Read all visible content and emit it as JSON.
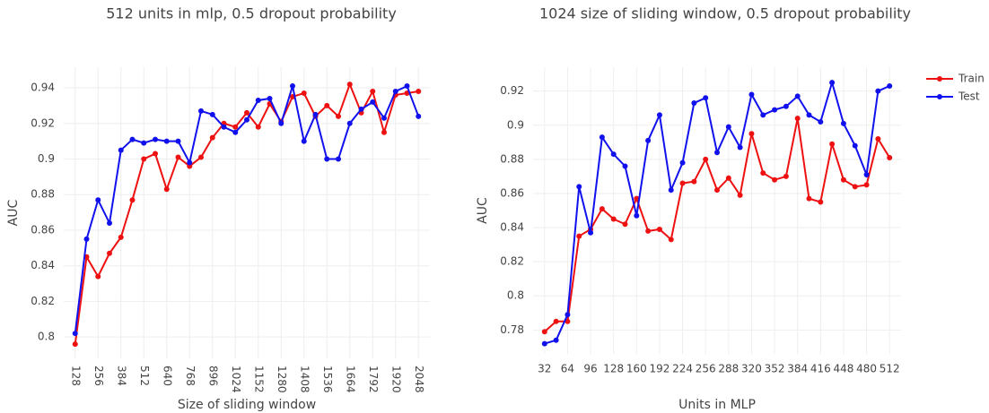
{
  "chart_data": [
    {
      "type": "line",
      "title": "512 units in mlp, 0.5 dropout probability",
      "x_label": "Size of sliding window",
      "y_label": "AUC",
      "x": [
        128,
        192,
        256,
        320,
        384,
        448,
        512,
        576,
        640,
        704,
        768,
        832,
        896,
        960,
        1024,
        1088,
        1152,
        1216,
        1280,
        1344,
        1408,
        1472,
        1536,
        1600,
        1664,
        1728,
        1792,
        1856,
        1920,
        1984,
        2048
      ],
      "series": [
        {
          "color": "#ee1111",
          "values": [
            0.796,
            0.845,
            0.834,
            0.847,
            0.856,
            0.877,
            0.9,
            0.903,
            0.883,
            0.901,
            0.896,
            0.901,
            0.912,
            0.92,
            0.918,
            0.926,
            0.918,
            0.931,
            0.921,
            0.935,
            0.937,
            0.924,
            0.93,
            0.924,
            0.942,
            0.926,
            0.938,
            0.915,
            0.936,
            0.937,
            0.938
          ]
        },
        {
          "color": "#1111ee",
          "values": [
            0.802,
            0.855,
            0.877,
            0.864,
            0.905,
            0.911,
            0.909,
            0.911,
            0.91,
            0.91,
            0.898,
            0.927,
            0.925,
            0.918,
            0.915,
            0.922,
            0.933,
            0.934,
            0.92,
            0.941,
            0.91,
            0.925,
            0.9,
            0.9,
            0.92,
            0.928,
            0.932,
            0.923,
            0.938,
            0.941,
            0.924
          ]
        }
      ],
      "xlim": [
        64,
        2112
      ],
      "xticks": [
        128,
        256,
        384,
        512,
        640,
        768,
        896,
        1024,
        1152,
        1280,
        1408,
        1536,
        1664,
        1792,
        1920,
        2048
      ],
      "ylim": [
        0.788,
        0.9516
      ],
      "yticks": [
        0.8,
        0.82,
        0.84,
        0.86,
        0.88,
        0.9,
        0.92,
        0.94
      ],
      "grid": true,
      "x_tick_rotation": 90
    },
    {
      "type": "line",
      "title": "1024 size of sliding window, 0.5 dropout probability",
      "x_label": "Units in MLP",
      "y_label": "AUC",
      "x": [
        32,
        48,
        64,
        80,
        96,
        112,
        128,
        144,
        160,
        176,
        192,
        208,
        224,
        240,
        256,
        272,
        288,
        304,
        320,
        336,
        352,
        368,
        384,
        400,
        416,
        432,
        448,
        464,
        480,
        496,
        512
      ],
      "series": [
        {
          "name": "Train",
          "color": "#ee1111",
          "values": [
            0.779,
            0.785,
            0.785,
            0.835,
            0.839,
            0.851,
            0.845,
            0.842,
            0.857,
            0.838,
            0.839,
            0.833,
            0.866,
            0.867,
            0.88,
            0.862,
            0.869,
            0.859,
            0.895,
            0.872,
            0.868,
            0.87,
            0.904,
            0.857,
            0.855,
            0.889,
            0.868,
            0.864,
            0.865,
            0.892,
            0.881
          ]
        },
        {
          "name": "Test",
          "color": "#1111ee",
          "values": [
            0.772,
            0.774,
            0.789,
            0.864,
            0.837,
            0.893,
            0.883,
            0.876,
            0.847,
            0.891,
            0.906,
            0.862,
            0.878,
            0.913,
            0.916,
            0.884,
            0.899,
            0.887,
            0.918,
            0.906,
            0.909,
            0.911,
            0.917,
            0.906,
            0.902,
            0.925,
            0.901,
            0.888,
            0.871,
            0.92,
            0.923
          ]
        }
      ],
      "xlim": [
        16,
        528
      ],
      "xticks": [
        32,
        64,
        96,
        128,
        160,
        192,
        224,
        256,
        288,
        320,
        352,
        384,
        416,
        448,
        480,
        512
      ],
      "ylim": [
        0.766,
        0.934
      ],
      "yticks": [
        0.78,
        0.8,
        0.82,
        0.84,
        0.86,
        0.88,
        0.9,
        0.92
      ],
      "grid": true,
      "legend": "right",
      "x_tick_rotation": 0
    }
  ]
}
